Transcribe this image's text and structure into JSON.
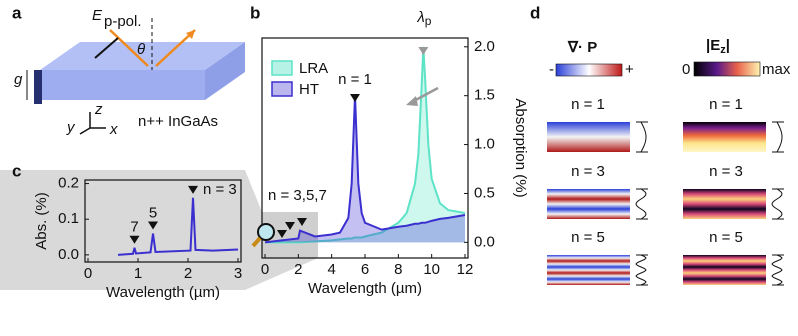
{
  "panels": {
    "a": {
      "label": "a",
      "field": "E",
      "field_sub": "p-pol.",
      "angle": "θ",
      "thickness": "g",
      "axis_z": "z",
      "axis_y": "y",
      "axis_x": "x",
      "material": "n++ InGaAs"
    },
    "d": {
      "label": "d",
      "div_p": "∇· P",
      "minus": "-",
      "plus": "+",
      "ez_zero": "0",
      "ez": "|E",
      "ez_sub": "z",
      "ez_bar": "|",
      "ez_max": "max",
      "modes": [
        "n = 1",
        "n = 3",
        "n = 5"
      ]
    }
  },
  "chart_data": [
    {
      "label": "b",
      "type": "line",
      "xlabel": "Wavelength (µm)",
      "ylabel": "Absorption (%)",
      "x": [
        0,
        1,
        2,
        2.1,
        3,
        4,
        4.5,
        5,
        5.2,
        5.4,
        5.6,
        5.8,
        6,
        7,
        8,
        8.5,
        9,
        9.2,
        9.4,
        9.5,
        9.6,
        9.8,
        10,
        10.5,
        11,
        12
      ],
      "series": [
        {
          "name": "LRA",
          "color": "#5de3c6",
          "values": [
            0,
            0,
            0,
            0,
            0.01,
            0.02,
            0.03,
            0.04,
            0.04,
            0.05,
            0.05,
            0.05,
            0.06,
            0.1,
            0.2,
            0.3,
            0.6,
            0.9,
            1.6,
            2.0,
            1.7,
            1.0,
            0.65,
            0.4,
            0.33,
            0.3
          ]
        },
        {
          "name": "HT",
          "color": "#3b2fcf",
          "values": [
            0,
            0.02,
            0.04,
            0.12,
            0.06,
            0.08,
            0.1,
            0.25,
            0.6,
            1.5,
            0.6,
            0.3,
            0.2,
            0.13,
            0.16,
            0.17,
            0.19,
            0.19,
            0.2,
            0.2,
            0.2,
            0.21,
            0.22,
            0.24,
            0.25,
            0.28
          ]
        }
      ],
      "xlim": [
        0,
        12
      ],
      "xticks": [
        0,
        2,
        4,
        6,
        8,
        10,
        12
      ],
      "ylim": [
        -0.16,
        2.09
      ],
      "yticks": [
        {
          "value": 0,
          "label": "0.0"
        },
        {
          "value": 0.5,
          "label": "0.5"
        },
        {
          "value": 1,
          "label": "1.0"
        },
        {
          "value": 1.5,
          "label": "1.5"
        },
        {
          "value": 2,
          "label": "2.0"
        }
      ],
      "annotations": [
        "λ",
        "p",
        "n = 1",
        "n = 3,5,7"
      ]
    },
    {
      "label": "c",
      "type": "line",
      "xlabel": "Wavelength (µm)",
      "ylabel": "Abs. (%)",
      "x": [
        0.6,
        0.9,
        0.93,
        0.96,
        1.25,
        1.3,
        1.35,
        2.05,
        2.1,
        2.15,
        2.5,
        3
      ],
      "values": [
        0,
        0.003,
        0.02,
        0.004,
        0.007,
        0.06,
        0.008,
        0.012,
        0.16,
        0.014,
        0.012,
        0.015
      ],
      "color": "#3b2fcf",
      "xlim": [
        0,
        3
      ],
      "xticks": [
        0,
        1,
        2,
        3
      ],
      "ylim": [
        -0.02,
        0.21
      ],
      "yticks": [
        {
          "value": 0,
          "label": "0.0"
        },
        {
          "value": 0.1,
          "label": "0.1"
        },
        {
          "value": 0.2,
          "label": "0.2"
        }
      ],
      "annotations": [
        "7",
        "5",
        "n = 3"
      ]
    }
  ]
}
